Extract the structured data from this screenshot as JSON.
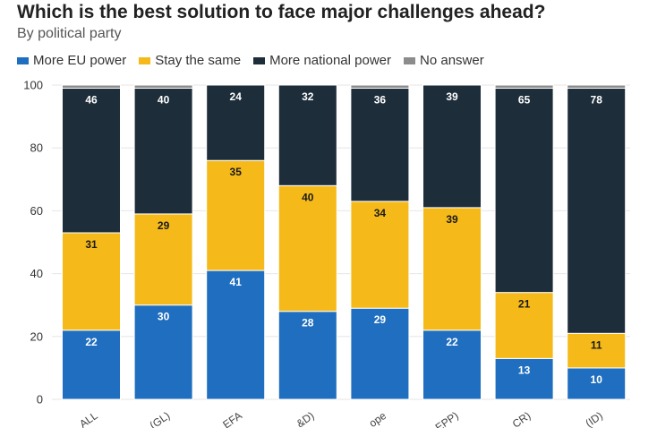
{
  "header": {
    "title": "Which is the best solution to face major challenges ahead?",
    "subtitle": "By political party"
  },
  "colors": {
    "more_eu": "#1f6ebf",
    "same": "#f5ba19",
    "national": "#1d2d3a",
    "no_answer": "#8c8c8c",
    "grid": "#e6e6e6"
  },
  "chart_data": {
    "type": "bar",
    "stacked": true,
    "title": "Which is the best solution to face major challenges ahead?",
    "subtitle": "By political party",
    "categories": [
      "ALL",
      "(GL)",
      "EFA",
      "&D)",
      "ope",
      "EPP)",
      "CR)",
      "(ID)"
    ],
    "ylim": [
      0,
      100
    ],
    "yticks": [
      0,
      20,
      40,
      60,
      80,
      100
    ],
    "legend_position": "top-left",
    "series": [
      {
        "name": "More EU power",
        "color": "#1f6ebf",
        "label_color": "#ffffff",
        "values": [
          22,
          30,
          41,
          28,
          29,
          22,
          13,
          10
        ]
      },
      {
        "name": "Stay the same",
        "color": "#f5ba19",
        "label_color": "#1a1a1a",
        "values": [
          31,
          29,
          35,
          40,
          34,
          39,
          21,
          11
        ]
      },
      {
        "name": "More national power",
        "color": "#1d2d3a",
        "label_color": "#ffffff",
        "values": [
          46,
          40,
          24,
          32,
          36,
          39,
          65,
          78
        ]
      },
      {
        "name": "No answer",
        "color": "#8c8c8c",
        "label_color": "#ffffff",
        "values": [
          1,
          1,
          0,
          0,
          1,
          0,
          1,
          1
        ]
      }
    ]
  }
}
